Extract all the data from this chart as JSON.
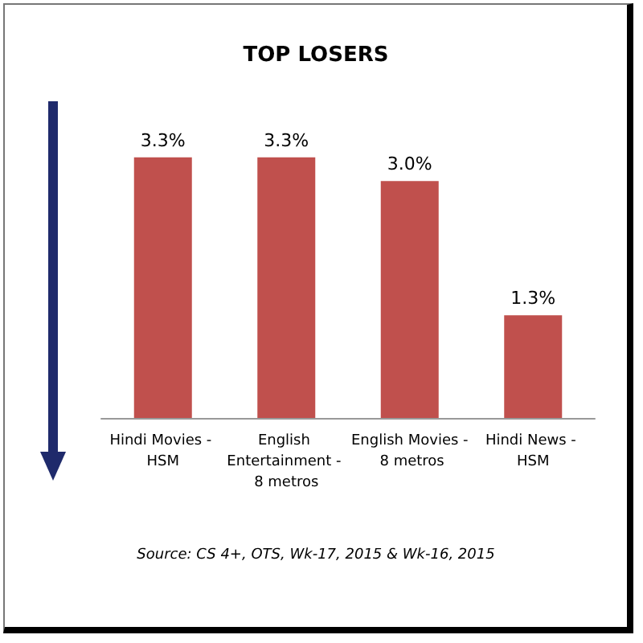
{
  "chart_data": {
    "type": "bar",
    "title": "TOP LOSERS",
    "categories": [
      "Hindi Movies - HSM",
      "English Entertainment - 8 metros",
      "English Movies - 8 metros",
      "Hindi News - HSM"
    ],
    "values": [
      3.3,
      3.3,
      3.0,
      1.3
    ],
    "value_labels": [
      "3.3%",
      "3.3%",
      "3.0%",
      "1.3%"
    ],
    "color": "#c0504d",
    "annotations": [
      "Source: CS 4+, OTS, Wk-17, 2015 & Wk-16, 2015"
    ],
    "data_labels": false
  }
}
